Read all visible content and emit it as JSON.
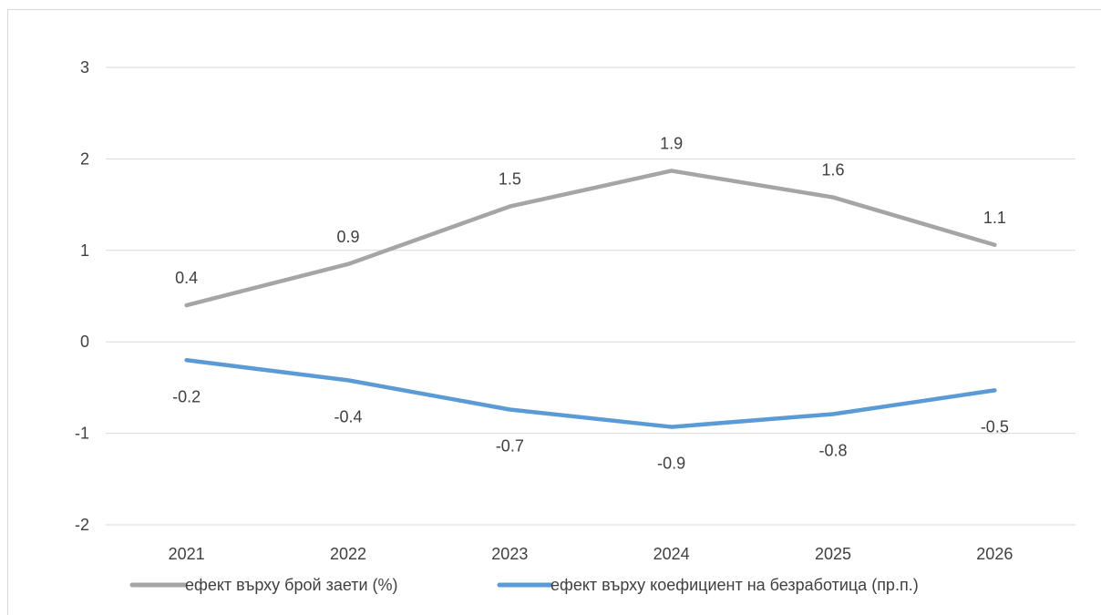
{
  "chart_data": {
    "type": "line",
    "title": "",
    "xlabel": "",
    "ylabel": "",
    "categories": [
      "2021",
      "2022",
      "2023",
      "2024",
      "2025",
      "2026"
    ],
    "ylim": [
      -2,
      3
    ],
    "yticks": [
      -2,
      -1,
      0,
      1,
      2,
      3
    ],
    "grid": "horizontal",
    "legend_position": "bottom",
    "series": [
      {
        "name": "ефект върху брой заети (%)",
        "color": "#a5a5a5",
        "values": [
          0.4,
          0.85,
          1.48,
          1.87,
          1.58,
          1.06
        ],
        "labels": [
          "0.4",
          "0.9",
          "1.5",
          "1.9",
          "1.6",
          "1.1"
        ]
      },
      {
        "name": "ефект върху коефициент на безработица (пр.п.)",
        "color": "#5b9bd5",
        "values": [
          -0.2,
          -0.42,
          -0.74,
          -0.93,
          -0.79,
          -0.53
        ],
        "labels": [
          "-0.2",
          "-0.4",
          "-0.7",
          "-0.9",
          "-0.8",
          "-0.5"
        ]
      }
    ]
  }
}
